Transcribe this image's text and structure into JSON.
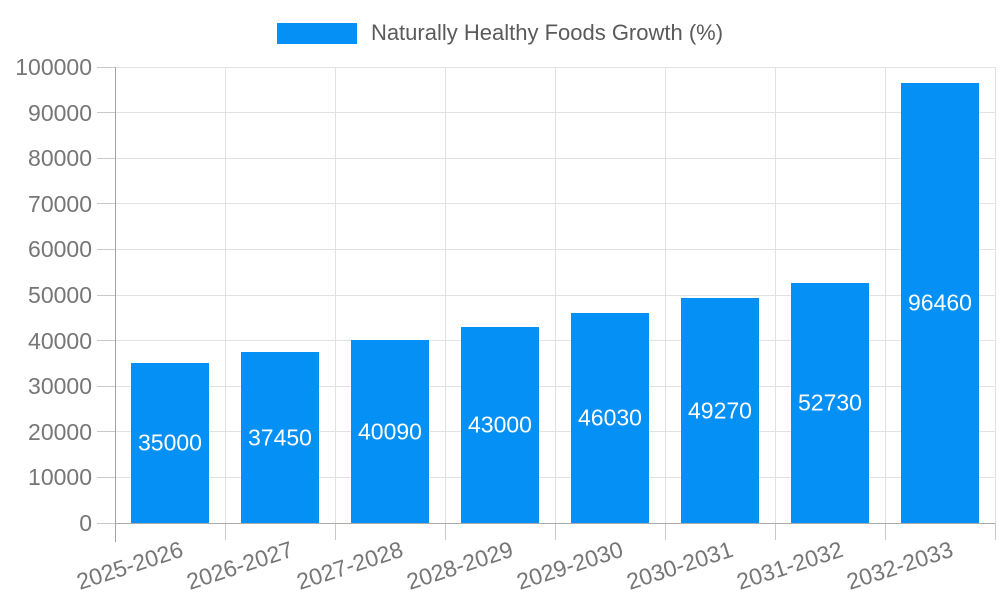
{
  "chart_data": {
    "type": "bar",
    "legend_label": "Naturally Healthy Foods Growth (%)",
    "legend_position": "top-center",
    "categories": [
      "2025-2026",
      "2026-2027",
      "2027-2028",
      "2028-2029",
      "2029-2030",
      "2030-2031",
      "2031-2032",
      "2032-2033"
    ],
    "values": [
      35000,
      37450,
      40090,
      43000,
      46030,
      49270,
      52730,
      96460
    ],
    "bar_value_labels": [
      "35000",
      "37450",
      "40090",
      "43000",
      "46030",
      "49270",
      "52730",
      "96460"
    ],
    "xlabel": "",
    "ylabel": "",
    "ylim": [
      0,
      100000
    ],
    "ytick_step": 10000,
    "y_ticks": [
      0,
      10000,
      20000,
      30000,
      40000,
      50000,
      60000,
      70000,
      80000,
      90000,
      100000
    ],
    "grid": true,
    "bar_color": "#0590f5",
    "bar_label_color": "#ffffff",
    "axis_text_color": "#767676",
    "legend_text_color": "#5a5a5a",
    "grid_color": "#e2e2e2",
    "axis_line_color": "#a2a2a2"
  }
}
